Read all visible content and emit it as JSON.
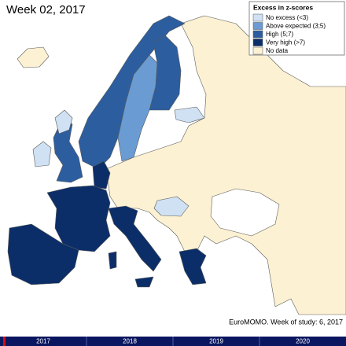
{
  "header": {
    "title": "Week 02, 2017"
  },
  "legend": {
    "title": "Excess in z-scores",
    "items": [
      {
        "label": "No excess (<3)",
        "color": "#cfe1f3"
      },
      {
        "label": "Above expected (3;5)",
        "color": "#6a9bd2"
      },
      {
        "label": "High (5;7)",
        "color": "#2c5d9f"
      },
      {
        "label": "Very high (>7)",
        "color": "#0c2e68"
      },
      {
        "label": "No data",
        "color": "#fcf1d2"
      }
    ]
  },
  "footer": "EuroMOMO. Week of study: 6, 2017",
  "timeline": {
    "years": [
      "2017",
      "2018",
      "2019",
      "2020"
    ]
  }
}
